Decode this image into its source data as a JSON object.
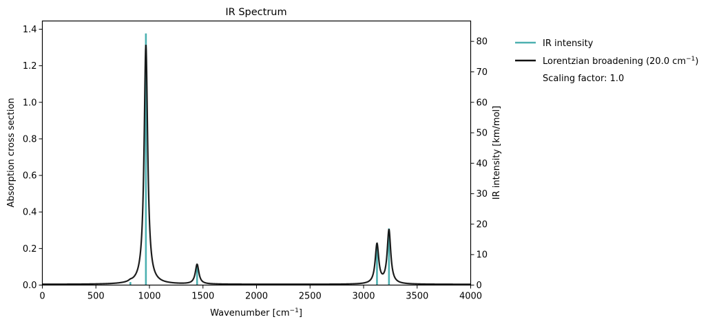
{
  "chart_data": {
    "type": "line",
    "title": "IR Spectrum",
    "xlabel": "Wavenumber [cm⁻¹]",
    "ylabel_left": "Absorption cross section",
    "ylabel_right": "IR intensity [km/mol]",
    "xlim": [
      0,
      4000
    ],
    "ylim_left": [
      0,
      1.445
    ],
    "ylim_right": [
      0,
      86.7
    ],
    "x_ticks": [
      0,
      500,
      1000,
      1500,
      2000,
      2500,
      3000,
      3500,
      4000
    ],
    "y_left_ticks": [
      "0.0",
      "0.2",
      "0.4",
      "0.6",
      "0.8",
      "1.0",
      "1.2",
      "1.4"
    ],
    "y_right_ticks": [
      "0",
      "10",
      "20",
      "30",
      "40",
      "50",
      "60",
      "70",
      "80"
    ],
    "grid": false,
    "legend_position": "outside-right-top",
    "broadening_hwhm": 20.0,
    "series": [
      {
        "name": "IR intensity",
        "style": "stick",
        "axis": "right",
        "color": "#4cb0b0",
        "x": [
          822,
          967,
          1445,
          3125,
          3237
        ],
        "values": [
          1.0,
          82.6,
          6.8,
          13.6,
          18.6
        ]
      },
      {
        "name": "Lorentzian broadening (20.0 cm⁻¹)",
        "style": "line",
        "axis": "left",
        "color": "#111111",
        "peaks_x": [
          822,
          967,
          1445,
          3125,
          3237
        ],
        "peaks_y": [
          0.03,
          1.31,
          0.11,
          0.225,
          0.3
        ]
      }
    ],
    "annotations": [
      "Scaling factor: 1.0"
    ]
  },
  "legend": {
    "items": [
      {
        "label": "IR intensity",
        "color": "#4cb0b0"
      },
      {
        "label_main": "Lorentzian broadening (20.0 cm",
        "label_sup": "−1",
        "label_end": ")",
        "color": "#111111"
      }
    ],
    "scaling_text": "Scaling factor: 1.0"
  },
  "labels": {
    "title": "IR Spectrum",
    "xlabel_main": "Wavenumber [cm",
    "xlabel_sup": "−1",
    "xlabel_end": "]",
    "ylabel_left": "Absorption cross section",
    "ylabel_right": "IR intensity [km/mol]"
  }
}
